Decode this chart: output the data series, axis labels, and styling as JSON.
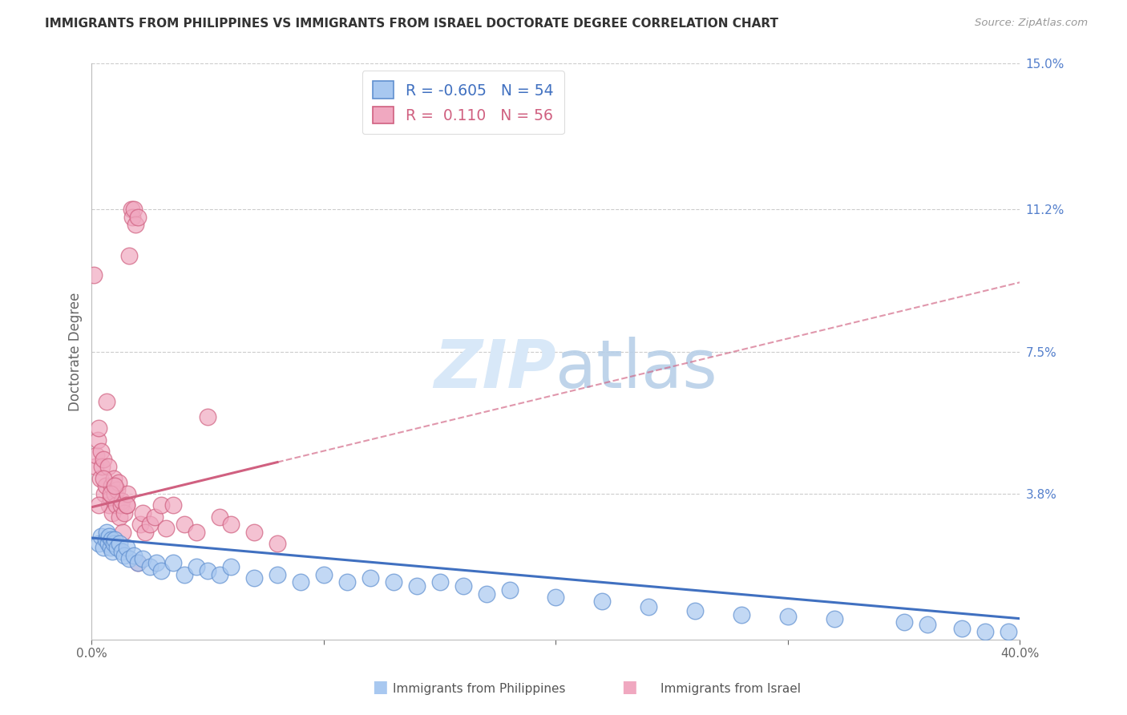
{
  "title": "IMMIGRANTS FROM PHILIPPINES VS IMMIGRANTS FROM ISRAEL DOCTORATE DEGREE CORRELATION CHART",
  "source": "Source: ZipAtlas.com",
  "ylabel": "Doctorate Degree",
  "right_ytick_vals": [
    0.0,
    3.8,
    7.5,
    11.2,
    15.0
  ],
  "right_ytick_labels": [
    "",
    "3.8%",
    "7.5%",
    "11.2%",
    "15.0%"
  ],
  "xtick_vals": [
    0,
    10,
    20,
    30,
    40
  ],
  "xtick_labels": [
    "0.0%",
    "",
    "",
    "",
    "40.0%"
  ],
  "xlim": [
    0,
    40
  ],
  "ylim": [
    0,
    15.0
  ],
  "legend_blue_r": "-0.605",
  "legend_blue_n": "54",
  "legend_pink_r": " 0.110",
  "legend_pink_n": "56",
  "legend_label_blue": "Immigrants from Philippines",
  "legend_label_pink": "Immigrants from Israel",
  "blue_dot_color": "#a8c8f0",
  "blue_dot_edge": "#6090d0",
  "blue_line_color": "#4070c0",
  "pink_dot_color": "#f0a8c0",
  "pink_dot_edge": "#d06080",
  "pink_line_color": "#d06080",
  "watermark_color": "#d8e8f8",
  "grid_color": "#cccccc",
  "blue_line_x0": 0,
  "blue_line_y0": 2.65,
  "blue_line_x1": 40,
  "blue_line_y1": 0.55,
  "pink_line_x0": 0,
  "pink_line_y0": 3.45,
  "pink_line_x1": 40,
  "pink_line_y1": 9.3,
  "pink_solid_end": 8.0,
  "blue_x": [
    0.3,
    0.4,
    0.5,
    0.6,
    0.65,
    0.7,
    0.75,
    0.8,
    0.85,
    0.9,
    0.95,
    1.0,
    1.1,
    1.2,
    1.3,
    1.4,
    1.5,
    1.6,
    1.8,
    2.0,
    2.2,
    2.5,
    2.8,
    3.0,
    3.5,
    4.0,
    4.5,
    5.0,
    5.5,
    6.0,
    7.0,
    8.0,
    9.0,
    10.0,
    11.0,
    12.0,
    13.0,
    14.0,
    15.0,
    16.0,
    17.0,
    18.0,
    20.0,
    22.0,
    24.0,
    26.0,
    28.0,
    30.0,
    32.0,
    35.0,
    36.0,
    37.5,
    38.5,
    39.5
  ],
  "blue_y": [
    2.5,
    2.7,
    2.4,
    2.6,
    2.8,
    2.5,
    2.7,
    2.4,
    2.6,
    2.3,
    2.5,
    2.6,
    2.4,
    2.5,
    2.3,
    2.2,
    2.4,
    2.1,
    2.2,
    2.0,
    2.1,
    1.9,
    2.0,
    1.8,
    2.0,
    1.7,
    1.9,
    1.8,
    1.7,
    1.9,
    1.6,
    1.7,
    1.5,
    1.7,
    1.5,
    1.6,
    1.5,
    1.4,
    1.5,
    1.4,
    1.2,
    1.3,
    1.1,
    1.0,
    0.85,
    0.75,
    0.65,
    0.6,
    0.55,
    0.45,
    0.4,
    0.3,
    0.2,
    0.2
  ],
  "pink_x": [
    0.1,
    0.15,
    0.2,
    0.25,
    0.3,
    0.35,
    0.4,
    0.45,
    0.5,
    0.55,
    0.6,
    0.65,
    0.7,
    0.75,
    0.8,
    0.85,
    0.9,
    0.95,
    1.0,
    1.05,
    1.1,
    1.15,
    1.2,
    1.25,
    1.3,
    1.35,
    1.4,
    1.5,
    1.55,
    1.6,
    1.7,
    1.75,
    1.8,
    1.9,
    2.0,
    2.1,
    2.2,
    2.3,
    2.5,
    2.7,
    3.0,
    3.2,
    3.5,
    4.0,
    4.5,
    5.0,
    5.5,
    6.0,
    7.0,
    8.0,
    0.3,
    0.5,
    0.8,
    1.0,
    1.5,
    2.0
  ],
  "pink_y": [
    9.5,
    4.5,
    4.8,
    5.2,
    5.5,
    4.2,
    4.9,
    4.5,
    4.7,
    3.8,
    4.0,
    6.2,
    4.5,
    3.5,
    3.7,
    4.0,
    3.3,
    4.2,
    3.8,
    3.5,
    3.9,
    4.1,
    3.2,
    3.5,
    3.6,
    2.8,
    3.3,
    3.5,
    3.8,
    10.0,
    11.2,
    11.0,
    11.2,
    10.8,
    11.0,
    3.0,
    3.3,
    2.8,
    3.0,
    3.2,
    3.5,
    2.9,
    3.5,
    3.0,
    2.8,
    5.8,
    3.2,
    3.0,
    2.8,
    2.5,
    3.5,
    4.2,
    3.8,
    4.0,
    3.5,
    2.0
  ]
}
